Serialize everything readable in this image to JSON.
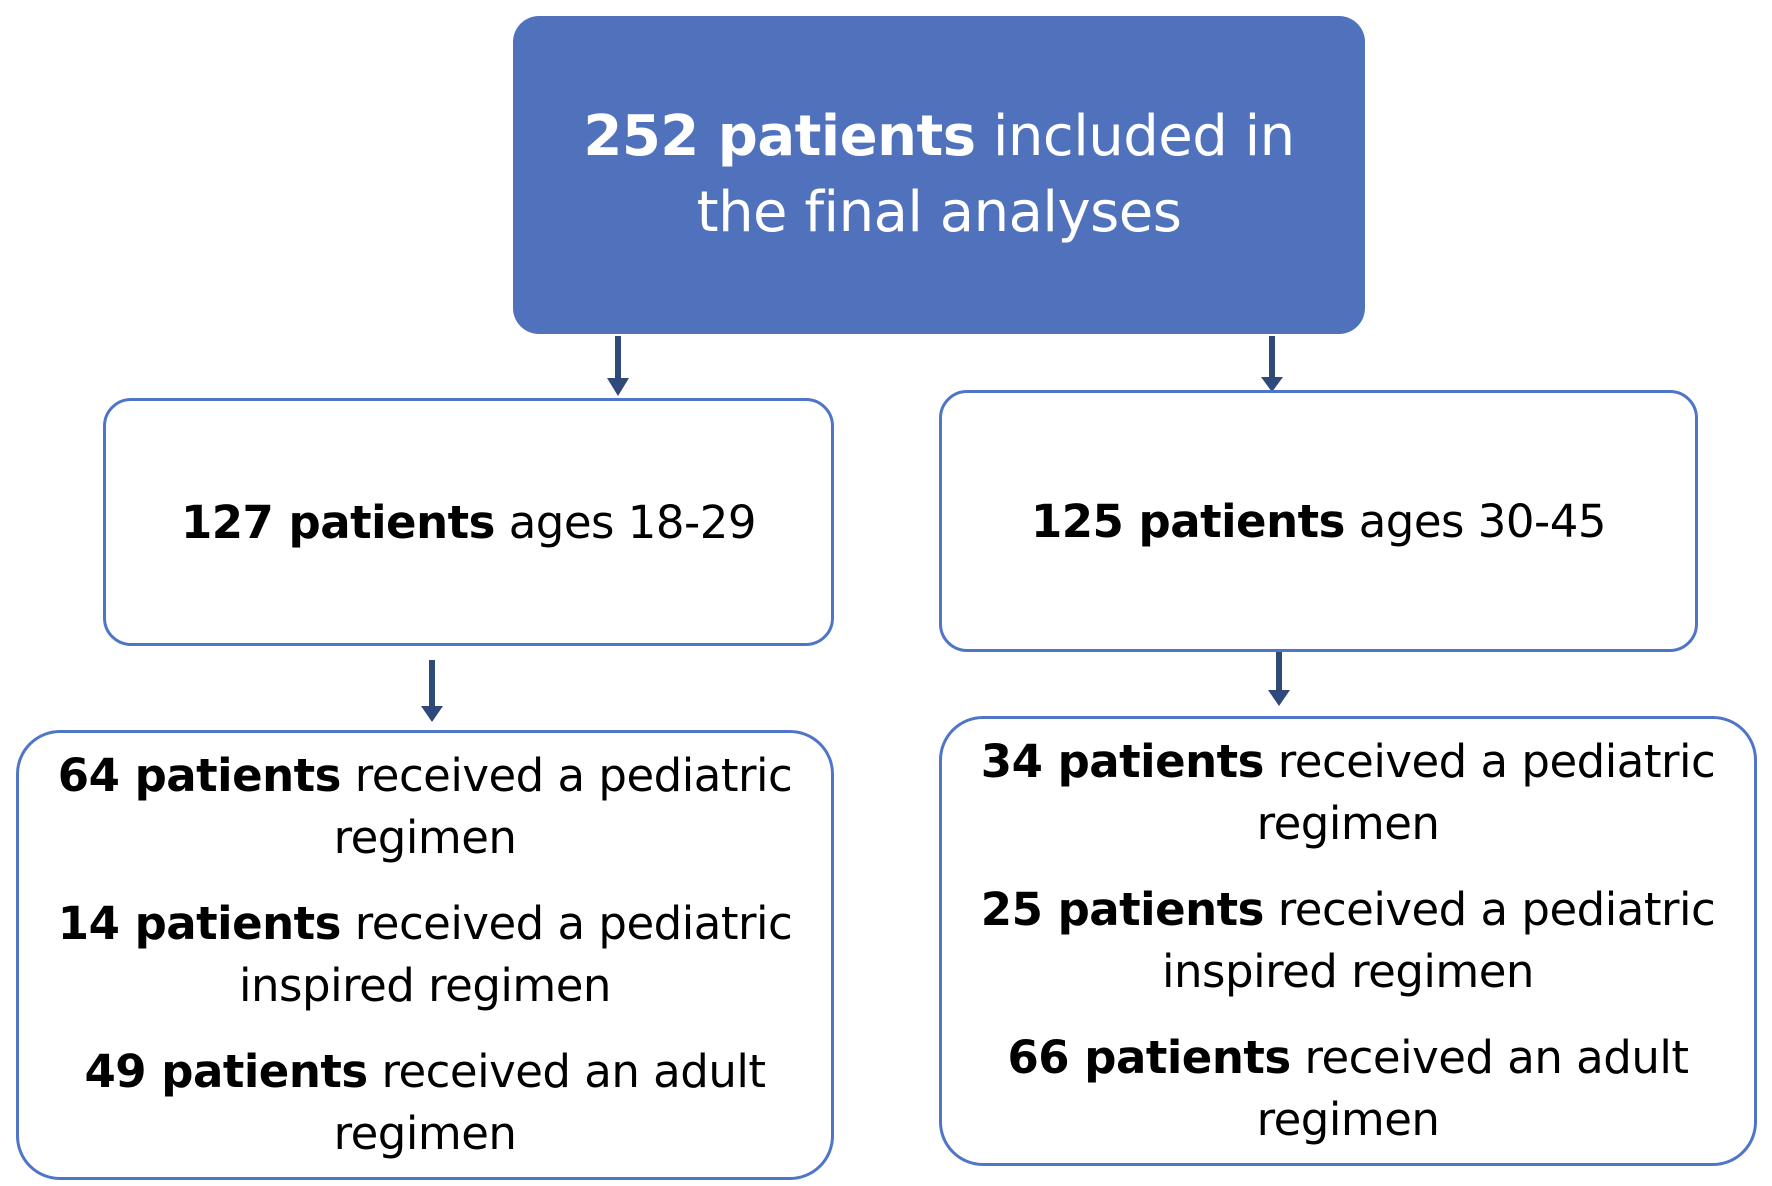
{
  "colors": {
    "top_fill": "#5072bd",
    "border": "#4f75c8",
    "arrow": "#2f4a7a"
  },
  "top": {
    "bold": "252 patients",
    "rest": " included in the final analyses"
  },
  "left_group": {
    "bold": "127 patients",
    "rest": " ages 18-29",
    "entries": [
      {
        "bold": "64 patients",
        "rest": " received a pediatric regimen"
      },
      {
        "bold": "14 patients",
        "rest": " received a pediatric inspired regimen"
      },
      {
        "bold": "49 patients",
        "rest": " received an adult regimen"
      }
    ]
  },
  "right_group": {
    "bold": "125 patients",
    "rest": " ages 30-45",
    "entries": [
      {
        "bold": "34 patients",
        "rest": " received a pediatric regimen"
      },
      {
        "bold": "25 patients",
        "rest": " received a pediatric inspired regimen"
      },
      {
        "bold": "66 patients",
        "rest": " received an adult regimen"
      }
    ]
  }
}
